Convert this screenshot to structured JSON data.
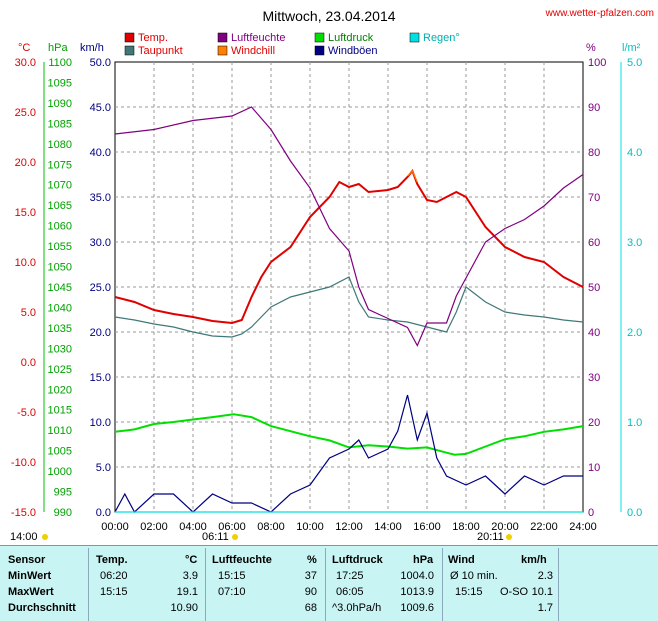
{
  "title": "Mittwoch, 23.04.2014",
  "site": "www.wetter-pfalzen.com",
  "axis_units": {
    "celsius": "°C",
    "hpa": "hPa",
    "kmh": "km/h",
    "percent": "%",
    "rain": "l/m²"
  },
  "legend": [
    {
      "label": "Temp.",
      "color": "#e00000"
    },
    {
      "label": "Luftfeuchte",
      "color": "#800080"
    },
    {
      "label": "Luftdruck",
      "color": "#00e000"
    },
    {
      "label": "Regen°",
      "color": "#00e0e0"
    },
    {
      "label": "Taupunkt",
      "color": "#407878"
    },
    {
      "label": "Windchill",
      "color": "#ff8000"
    },
    {
      "label": "Windböen",
      "color": "#000080"
    }
  ],
  "sun": {
    "day_start": "14:00",
    "sunrise": "06:11",
    "sunset": "20:11"
  },
  "chart_data": {
    "type": "line",
    "x_range": [
      "00:00",
      "24:00"
    ],
    "x_ticks": [
      "00:00",
      "02:00",
      "04:00",
      "06:00",
      "08:00",
      "10:00",
      "12:00",
      "14:00",
      "16:00",
      "18:00",
      "20:00",
      "22:00",
      "24:00"
    ],
    "axes": {
      "temp": {
        "label": "°C",
        "range": [
          -15,
          30
        ],
        "ticks": [
          "30.0",
          "25.0",
          "20.0",
          "15.0",
          "10.0",
          "5.0",
          "0.0",
          "-5.0",
          "-10.0",
          "-15.0"
        ]
      },
      "pressure": {
        "label": "hPa",
        "range": [
          990,
          1100
        ],
        "ticks": [
          "1100",
          "1095",
          "1090",
          "1085",
          "1080",
          "1075",
          "1070",
          "1065",
          "1060",
          "1055",
          "1050",
          "1045",
          "1040",
          "1035",
          "1030",
          "1025",
          "1020",
          "1015",
          "1010",
          "1005",
          "1000",
          "995",
          "990"
        ]
      },
      "wind": {
        "label": "km/h",
        "range": [
          0,
          50
        ],
        "ticks": [
          "50.0",
          "45.0",
          "40.0",
          "35.0",
          "30.0",
          "25.0",
          "20.0",
          "15.0",
          "10.0",
          "5.0",
          "0.0"
        ]
      },
      "humidity": {
        "label": "%",
        "range": [
          0,
          100
        ],
        "ticks": [
          "100",
          "90",
          "80",
          "70",
          "60",
          "50",
          "40",
          "30",
          "20",
          "10",
          "0"
        ]
      },
      "rain": {
        "label": "l/m²",
        "range": [
          0,
          5
        ],
        "ticks": [
          "5.0",
          "4.0",
          "3.0",
          "2.0",
          "1.0",
          "0.0"
        ]
      }
    },
    "series": [
      {
        "name": "Temp.",
        "axis": "temp",
        "color": "#e00000",
        "points": [
          [
            0,
            6.5
          ],
          [
            1,
            6.0
          ],
          [
            2,
            5.2
          ],
          [
            3,
            4.8
          ],
          [
            4,
            4.5
          ],
          [
            5,
            4.1
          ],
          [
            6,
            3.9
          ],
          [
            6.5,
            4.2
          ],
          [
            7,
            6.5
          ],
          [
            7.5,
            8.5
          ],
          [
            8,
            10.0
          ],
          [
            9,
            11.5
          ],
          [
            10,
            14.5
          ],
          [
            11,
            16.5
          ],
          [
            11.5,
            18.0
          ],
          [
            12,
            17.5
          ],
          [
            12.5,
            17.8
          ],
          [
            13,
            17.0
          ],
          [
            14,
            17.2
          ],
          [
            14.5,
            17.5
          ],
          [
            15,
            18.5
          ],
          [
            15.25,
            19.1
          ],
          [
            15.5,
            17.8
          ],
          [
            16,
            16.2
          ],
          [
            16.5,
            16.0
          ],
          [
            17,
            16.5
          ],
          [
            17.5,
            17.0
          ],
          [
            18,
            16.5
          ],
          [
            19,
            13.5
          ],
          [
            20,
            11.5
          ],
          [
            21,
            10.5
          ],
          [
            22,
            10.0
          ],
          [
            23,
            8.5
          ],
          [
            24,
            7.5
          ]
        ]
      },
      {
        "name": "Taupunkt",
        "axis": "temp",
        "color": "#407878",
        "points": [
          [
            0,
            4.5
          ],
          [
            1,
            4.2
          ],
          [
            2,
            3.8
          ],
          [
            3,
            3.5
          ],
          [
            4,
            3.0
          ],
          [
            5,
            2.6
          ],
          [
            6,
            2.5
          ],
          [
            6.5,
            2.8
          ],
          [
            7,
            3.5
          ],
          [
            8,
            5.5
          ],
          [
            9,
            6.5
          ],
          [
            10,
            7.0
          ],
          [
            11,
            7.5
          ],
          [
            12,
            8.5
          ],
          [
            12.5,
            6.0
          ],
          [
            13,
            4.5
          ],
          [
            14,
            4.2
          ],
          [
            15,
            4.0
          ],
          [
            16,
            3.5
          ],
          [
            17,
            3.0
          ],
          [
            17.5,
            5.0
          ],
          [
            18,
            7.5
          ],
          [
            19,
            6.0
          ],
          [
            20,
            5.0
          ],
          [
            21,
            4.7
          ],
          [
            22,
            4.5
          ],
          [
            23,
            4.2
          ],
          [
            24,
            4.0
          ]
        ]
      },
      {
        "name": "Luftfeuchte",
        "axis": "humidity",
        "color": "#800080",
        "points": [
          [
            0,
            84
          ],
          [
            2,
            85
          ],
          [
            4,
            87
          ],
          [
            6,
            88
          ],
          [
            7,
            90
          ],
          [
            8,
            85
          ],
          [
            9,
            78
          ],
          [
            10,
            72
          ],
          [
            11,
            63
          ],
          [
            12,
            58
          ],
          [
            12.5,
            50
          ],
          [
            13,
            45
          ],
          [
            14,
            43
          ],
          [
            15,
            41
          ],
          [
            15.5,
            37
          ],
          [
            16,
            42
          ],
          [
            17,
            42
          ],
          [
            17.5,
            48
          ],
          [
            18,
            52
          ],
          [
            19,
            60
          ],
          [
            20,
            63
          ],
          [
            21,
            65
          ],
          [
            22,
            68
          ],
          [
            23,
            72
          ],
          [
            24,
            75
          ]
        ]
      },
      {
        "name": "Luftdruck",
        "axis": "pressure",
        "color": "#00e000",
        "points": [
          [
            0,
            1009.6
          ],
          [
            1,
            1010.2
          ],
          [
            2,
            1011.5
          ],
          [
            3,
            1012.0
          ],
          [
            4,
            1012.6
          ],
          [
            5,
            1013.2
          ],
          [
            6.08,
            1013.9
          ],
          [
            7,
            1013.2
          ],
          [
            8,
            1011.0
          ],
          [
            10,
            1008.5
          ],
          [
            11,
            1007.5
          ],
          [
            12,
            1005.8
          ],
          [
            13,
            1006.3
          ],
          [
            14,
            1006.0
          ],
          [
            15,
            1005.5
          ],
          [
            16,
            1005.8
          ],
          [
            17,
            1004.5
          ],
          [
            17.42,
            1004.0
          ],
          [
            18,
            1004.2
          ],
          [
            19,
            1006.0
          ],
          [
            20,
            1007.8
          ],
          [
            21,
            1008.5
          ],
          [
            22,
            1009.6
          ],
          [
            23,
            1010.2
          ],
          [
            24,
            1011.0
          ]
        ]
      },
      {
        "name": "Windchill",
        "axis": "temp",
        "color": "#ff8000",
        "points": [
          [
            15,
            18.6
          ],
          [
            15.25,
            19.1
          ],
          [
            15.5,
            18.0
          ]
        ]
      },
      {
        "name": "Windböen",
        "axis": "wind",
        "color": "#000080",
        "points": [
          [
            0,
            0
          ],
          [
            0.5,
            2
          ],
          [
            1,
            0
          ],
          [
            2,
            2
          ],
          [
            3,
            2
          ],
          [
            4,
            0
          ],
          [
            5,
            2
          ],
          [
            6,
            1
          ],
          [
            7,
            1
          ],
          [
            8,
            0
          ],
          [
            9,
            2
          ],
          [
            10,
            3
          ],
          [
            11,
            6
          ],
          [
            12,
            7
          ],
          [
            12.5,
            8
          ],
          [
            13,
            6
          ],
          [
            14,
            7
          ],
          [
            14.5,
            9
          ],
          [
            15,
            13
          ],
          [
            15.5,
            8
          ],
          [
            16,
            11
          ],
          [
            16.5,
            6
          ],
          [
            17,
            4
          ],
          [
            18,
            3
          ],
          [
            19,
            4
          ],
          [
            20,
            2
          ],
          [
            21,
            4
          ],
          [
            22,
            3
          ],
          [
            23,
            4
          ],
          [
            24,
            4
          ]
        ]
      },
      {
        "name": "Regen°",
        "axis": "rain",
        "color": "#00e0e0",
        "points": [
          [
            0,
            0
          ],
          [
            24,
            0
          ]
        ]
      }
    ]
  },
  "table": {
    "headers": [
      "Sensor",
      "Temp.",
      "°C",
      "Luftfeuchte",
      "%",
      "Luftdruck",
      "hPa",
      "Wind",
      "km/h"
    ],
    "rows": [
      {
        "label": "MinWert",
        "temp_time": "06:20",
        "temp_val": "3.9",
        "hum_time": "15:15",
        "hum_val": "37",
        "pres_time": "17:25",
        "pres_val": "1004.0",
        "wind_label": "Ø 10 min.",
        "wind_val": "2.3"
      },
      {
        "label": "MaxWert",
        "temp_time": "15:15",
        "temp_val": "19.1",
        "hum_time": "07:10",
        "hum_val": "90",
        "pres_time": "06:05",
        "pres_val": "1013.9",
        "wind_label": "15:15",
        "wind_dir": "O-SO",
        "wind_val": "10.1"
      },
      {
        "label": "Durchschnitt",
        "temp_time": "",
        "temp_val": "10.90",
        "hum_time": "",
        "hum_val": "68",
        "pres_time": "^3.0hPa/h",
        "pres_val": "1009.6",
        "wind_label": "",
        "wind_val": "1.7"
      }
    ]
  }
}
